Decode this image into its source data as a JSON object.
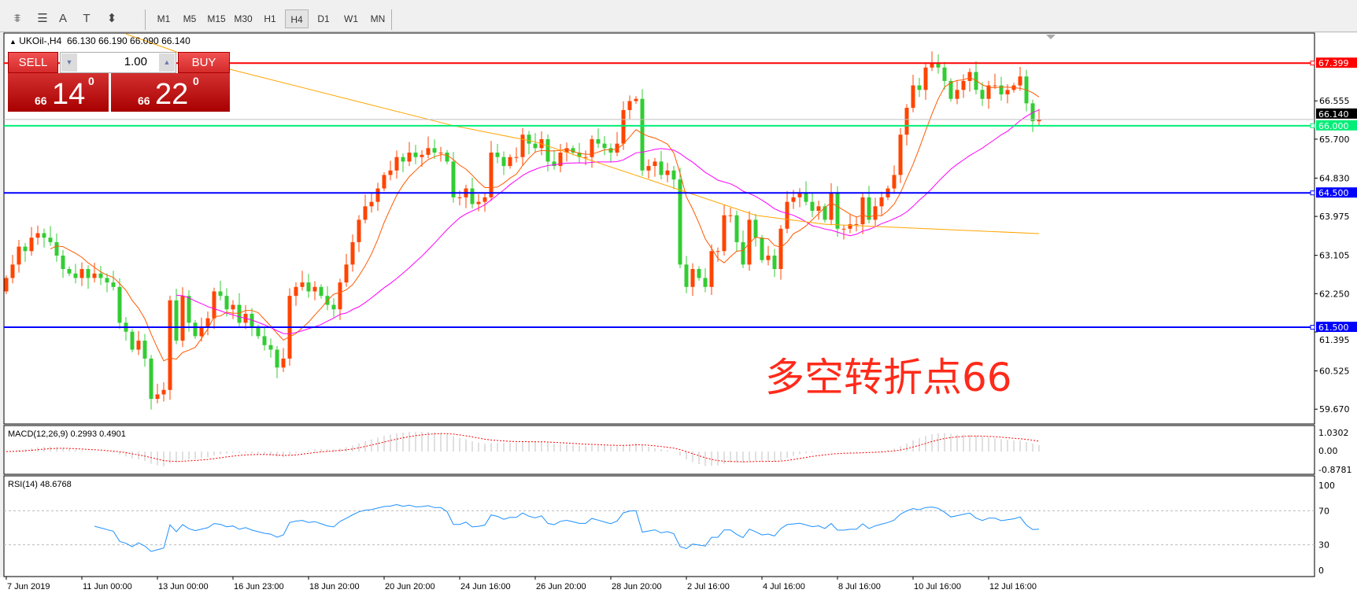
{
  "toolbar": {
    "tools": [
      "fibonacci-expansion-icon",
      "fibonacci-fan-icon",
      "text-icon",
      "text-label-icon",
      "arrows-dropdown-icon"
    ],
    "tool_glyphs": [
      "⩨",
      "☰",
      "A",
      "T",
      "⬍"
    ],
    "timeframes": [
      "M1",
      "M5",
      "M15",
      "M30",
      "H1",
      "H4",
      "D1",
      "W1",
      "MN"
    ],
    "active_timeframe": "H4"
  },
  "chart_header": {
    "symbol": "UKOil-,H4",
    "ohlc": "66.130 66.190 66.090 66.140"
  },
  "trade_panel": {
    "sell_label": "SELL",
    "buy_label": "BUY",
    "volume": "1.00",
    "sell_small": "66",
    "sell_main": "14",
    "sell_sup": "0",
    "buy_small": "66",
    "buy_main": "22",
    "buy_sup": "0"
  },
  "annotation": "多空转折点66",
  "chart_data": {
    "type": "candlestick",
    "symbol": "UKOil-",
    "timeframe": "H4",
    "closes": [
      62.6,
      62.9,
      63.3,
      63.2,
      63.5,
      63.6,
      63.5,
      63.4,
      63.1,
      62.8,
      62.7,
      62.6,
      62.8,
      62.6,
      62.7,
      62.6,
      62.5,
      62.4,
      61.6,
      61.4,
      61.0,
      61.2,
      60.8,
      59.9,
      60.0,
      60.1,
      62.1,
      61.2,
      62.2,
      61.6,
      61.3,
      61.5,
      61.7,
      62.3,
      62.2,
      61.9,
      62.0,
      61.6,
      61.8,
      61.5,
      61.3,
      61.1,
      61.0,
      60.6,
      60.8,
      62.2,
      62.4,
      62.5,
      62.3,
      62.4,
      62.2,
      62.0,
      61.9,
      62.5,
      62.9,
      63.4,
      63.9,
      64.2,
      64.3,
      64.6,
      64.9,
      65.0,
      65.3,
      65.2,
      65.4,
      65.3,
      65.35,
      65.5,
      65.4,
      65.4,
      65.2,
      64.4,
      64.4,
      64.6,
      64.25,
      64.3,
      64.4,
      65.4,
      65.3,
      65.1,
      65.3,
      65.3,
      65.8,
      65.6,
      65.5,
      65.7,
      65.2,
      65.1,
      65.4,
      65.5,
      65.4,
      65.3,
      65.3,
      65.7,
      65.6,
      65.5,
      65.4,
      65.6,
      66.35,
      66.55,
      66.6,
      65.0,
      65.1,
      65.2,
      64.9,
      65.0,
      64.8,
      62.9,
      62.4,
      62.8,
      62.6,
      62.4,
      63.2,
      63.2,
      64.0,
      64.0,
      63.4,
      62.9,
      63.9,
      63.5,
      63.0,
      63.1,
      62.8,
      63.7,
      64.3,
      64.4,
      64.5,
      64.3,
      64.1,
      64.2,
      63.9,
      64.5,
      63.7,
      63.7,
      63.8,
      63.8,
      64.4,
      63.9,
      64.2,
      64.4,
      64.6,
      64.9,
      65.8,
      66.4,
      66.9,
      66.8,
      67.3,
      67.4,
      67.3,
      67.0,
      66.6,
      66.8,
      67.0,
      67.2,
      66.8,
      66.6,
      66.9,
      66.9,
      66.7,
      66.8,
      66.9,
      67.1,
      66.5,
      66.1,
      66.14
    ],
    "bull_color": "#ff4400",
    "bear_color": "#33cc33",
    "price_range": [
      59.34,
      68.07
    ],
    "price_ticks": [
      "66.555",
      "65.700",
      "64.830",
      "63.975",
      "63.105",
      "62.250",
      "61.395",
      "60.525",
      "59.670"
    ],
    "current_price": {
      "value": "66.140",
      "color": "#000000"
    },
    "horizontal_lines": [
      {
        "value": "67.399",
        "color": "#ff0000"
      },
      {
        "value": "66.000",
        "color": "#00ee77"
      },
      {
        "value": "64.500",
        "color": "#0000ff"
      },
      {
        "value": "61.500",
        "color": "#0000ff"
      }
    ],
    "ma_colors": {
      "fast": "#ff5a00",
      "medium": "#ff00ff",
      "slow": "#ffa500"
    },
    "ma_slow_points": [
      [
        19,
        68.05
      ],
      [
        33,
        67.35
      ],
      [
        71,
        66.0
      ],
      [
        84,
        65.64
      ],
      [
        109,
        64.47
      ],
      [
        119,
        64.0
      ],
      [
        130,
        63.8
      ],
      [
        164,
        63.59
      ]
    ],
    "x_ticks": [
      "7 Jun 2019",
      "11 Jun 00:00",
      "13 Jun 00:00",
      "16 Jun 23:00",
      "18 Jun 20:00",
      "20 Jun 20:00",
      "24 Jun 16:00",
      "26 Jun 20:00",
      "28 Jun 20:00",
      "2 Jul 16:00",
      "4 Jul 16:00",
      "8 Jul 16:00",
      "10 Jul 16:00",
      "12 Jul 16:00"
    ],
    "macd": {
      "label": "MACD(12,26,9) 0.2993 0.4901",
      "ticks": [
        "1.0302",
        "0.00",
        "-0.8781"
      ],
      "range": [
        -0.8781,
        1.0302
      ],
      "histogram_color": "#c0c0c0",
      "signal_color": "#ff0000"
    },
    "rsi": {
      "label": "RSI(14) 48.6768",
      "ticks": [
        "100",
        "70",
        "30",
        "0"
      ],
      "range": [
        0,
        100
      ],
      "levels": [
        70,
        30
      ],
      "color": "#1e90ff"
    }
  }
}
